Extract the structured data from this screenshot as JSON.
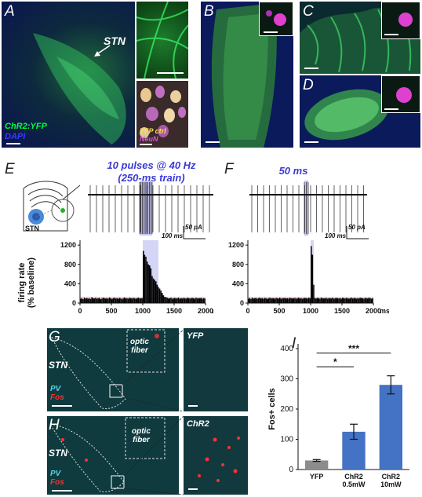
{
  "panels": {
    "A": {
      "letter": "A",
      "region_label": "STN",
      "legend_chr2": "ChR2:YFP",
      "legend_dapi": "DAPI",
      "inset_legend_yfp": "YFP ctrl",
      "inset_legend_neun": "NeuN"
    },
    "B": {
      "letter": "B"
    },
    "C": {
      "letter": "C"
    },
    "D": {
      "letter": "D"
    },
    "E": {
      "letter": "E",
      "title_line1": "10 pulses @ 40 Hz",
      "title_line2": "(250-ms train)",
      "schematic_label": "STN",
      "scale_time": "100 ms",
      "scale_amp": "50 pA"
    },
    "F": {
      "letter": "F",
      "title": "50 ms",
      "scale_time": "100 ms",
      "scale_amp": "50 pA"
    },
    "G": {
      "letter": "G",
      "region_label": "STN",
      "fiber_label_1": "optic",
      "fiber_label_2": "fiber",
      "stain_pv": "PV",
      "stain_fos": "Fos",
      "zoom_label": "YFP"
    },
    "H": {
      "letter": "H",
      "region_label": "STN",
      "fiber_label_1": "optic",
      "fiber_label_2": "fiber",
      "stain_pv": "PV",
      "stain_fos": "Fos",
      "zoom_label": "ChR2"
    },
    "I": {
      "letter": "I"
    }
  },
  "colors": {
    "chr2": "#00ff3c",
    "dapi": "#2b2bff",
    "fos": "#ff3030",
    "pv": "#5ad0e0",
    "title_blue": "#3a3ad6",
    "stim_band": "#b9b9f2",
    "hist_bar": "#000000",
    "baseline_err": "#d63a3a",
    "bar_yfp": "#8c8c8c",
    "bar_chr2": "#4472c4"
  },
  "chart_data": [
    {
      "type": "bar",
      "panel": "E",
      "ylabel": "firing rate\n(% baseline)",
      "xlabel_unit": "ms",
      "x_ticks": [
        0,
        500,
        1000,
        1500,
        2000
      ],
      "y_ticks": [
        0,
        400,
        800,
        1200
      ],
      "xlim": [
        0,
        2000
      ],
      "ylim": [
        0,
        1300
      ],
      "bin_ms": 20,
      "stim_window_ms": [
        1000,
        1250
      ],
      "values": [
        90,
        100,
        80,
        110,
        95,
        105,
        90,
        100,
        85,
        120,
        100,
        95,
        110,
        90,
        100,
        105,
        80,
        95,
        110,
        100,
        95,
        100,
        90,
        115,
        100,
        85,
        100,
        110,
        95,
        100,
        90,
        105,
        100,
        80,
        100,
        115,
        95,
        100,
        90,
        110,
        100,
        95,
        105,
        100,
        90,
        100,
        110,
        95,
        100,
        100,
        1080,
        1000,
        960,
        860,
        800,
        780,
        720,
        560,
        510,
        480,
        450,
        380,
        330,
        300,
        260,
        210,
        160,
        130,
        120,
        110,
        95,
        100,
        110,
        90,
        100,
        105,
        95,
        100,
        110,
        90,
        100,
        95,
        105,
        100,
        90,
        110,
        100,
        95,
        100,
        105,
        100,
        90,
        110,
        95,
        100,
        100,
        105,
        90,
        100,
        95
      ]
    },
    {
      "type": "bar",
      "panel": "F",
      "xlabel_unit": "ms",
      "x_ticks": [
        0,
        500,
        1000,
        1500,
        2000
      ],
      "y_ticks": [
        0,
        400,
        800,
        1200
      ],
      "xlim": [
        0,
        2000
      ],
      "ylim": [
        0,
        1300
      ],
      "bin_ms": 20,
      "stim_window_ms": [
        1000,
        1050
      ],
      "values": [
        90,
        100,
        85,
        110,
        95,
        100,
        105,
        90,
        100,
        110,
        95,
        100,
        90,
        105,
        100,
        85,
        100,
        110,
        95,
        100,
        100,
        90,
        105,
        100,
        95,
        110,
        90,
        100,
        100,
        105,
        95,
        100,
        90,
        110,
        100,
        95,
        100,
        105,
        90,
        100,
        110,
        95,
        100,
        90,
        100,
        105,
        100,
        95,
        110,
        100,
        1180,
        1000,
        380,
        100,
        95,
        105,
        100,
        90,
        110,
        100,
        95,
        100,
        105,
        90,
        100,
        100,
        95,
        110,
        90,
        100,
        105,
        100,
        95,
        100,
        90,
        110,
        100,
        95,
        105,
        100,
        90,
        100,
        110,
        95,
        100,
        105,
        90,
        100,
        95,
        110,
        100,
        100,
        90,
        105,
        100,
        95,
        110,
        100,
        90,
        100
      ]
    },
    {
      "type": "bar",
      "panel": "I",
      "categories": [
        "YFP",
        "ChR2\n0.5mW",
        "ChR2\n10mW"
      ],
      "values": [
        30,
        125,
        280
      ],
      "errors": [
        3,
        25,
        30
      ],
      "ylabel": "Fos+ cells",
      "ylim": [
        0,
        400
      ],
      "y_ticks": [
        0,
        100,
        200,
        300,
        400
      ],
      "significance": [
        {
          "between": [
            0,
            1
          ],
          "label": "*"
        },
        {
          "between": [
            0,
            2
          ],
          "label": "***"
        }
      ]
    }
  ]
}
